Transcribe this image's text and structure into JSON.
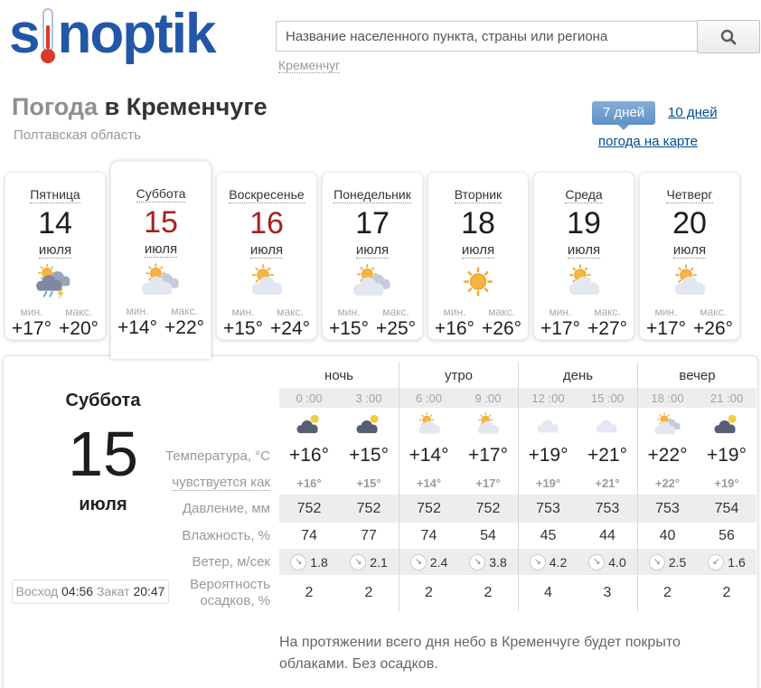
{
  "logo": {
    "left": "s",
    "right": "noptik"
  },
  "header": {
    "search_placeholder": "Название населенного пункта, страны или региона",
    "recent_city": "Кременчуг"
  },
  "title": {
    "prefix": "Погода",
    "city": "в Кременчуге",
    "region": "Полтавская область"
  },
  "tabs": {
    "seven": "7 дней",
    "ten": "10 дней",
    "map": "погода на карте"
  },
  "mm": {
    "min": "мин.",
    "max": "макс."
  },
  "days": [
    {
      "name": "Пятница",
      "date": "14",
      "month": "июля",
      "icon": "storm",
      "min": "+17°",
      "max": "+20°"
    },
    {
      "name": "Суббота",
      "date": "15",
      "month": "июля",
      "icon": "sun-clouds",
      "min": "+14°",
      "max": "+22°"
    },
    {
      "name": "Воскресенье",
      "date": "16",
      "month": "июля",
      "icon": "sun-cloud",
      "min": "+15°",
      "max": "+24°"
    },
    {
      "name": "Понедельник",
      "date": "17",
      "month": "июля",
      "icon": "sun-clouds",
      "min": "+15°",
      "max": "+25°"
    },
    {
      "name": "Вторник",
      "date": "18",
      "month": "июля",
      "icon": "sun",
      "min": "+16°",
      "max": "+26°"
    },
    {
      "name": "Среда",
      "date": "19",
      "month": "июля",
      "icon": "sun-cloud",
      "min": "+17°",
      "max": "+27°"
    },
    {
      "name": "Четверг",
      "date": "20",
      "month": "июля",
      "icon": "sun-cloud",
      "min": "+17°",
      "max": "+26°"
    }
  ],
  "detail": {
    "day_name": "Суббота",
    "date": "15",
    "month": "июля",
    "sunrise_label": "Восход",
    "sunrise": "04:56",
    "sunset_label": "Закат",
    "sunset": "20:47",
    "periods": [
      "ночь",
      "утро",
      "день",
      "вечер"
    ],
    "row_labels": {
      "temp": "Температура, °C",
      "feels": "чувствуется как",
      "pressure": "Давление, мм",
      "humidity": "Влажность, %",
      "wind": "Ветер, м/сек",
      "precip_line1": "Вероятность",
      "precip_line2": "осадков, %"
    },
    "columns": [
      {
        "time": "0 :00",
        "icon": "moon-cloud",
        "temp": "+16°",
        "feels": "+16°",
        "pressure": "752",
        "humidity": "74",
        "wind_dir": "↘",
        "wind": "1.8",
        "precip": "2"
      },
      {
        "time": "3 :00",
        "icon": "moon-cloud",
        "temp": "+15°",
        "feels": "+15°",
        "pressure": "752",
        "humidity": "77",
        "wind_dir": "↘",
        "wind": "2.1",
        "precip": "2"
      },
      {
        "time": "6 :00",
        "icon": "sun-cloud",
        "temp": "+14°",
        "feels": "+14°",
        "pressure": "752",
        "humidity": "74",
        "wind_dir": "↘",
        "wind": "2.4",
        "precip": "2"
      },
      {
        "time": "9 :00",
        "icon": "sun-cloud",
        "temp": "+17°",
        "feels": "+17°",
        "pressure": "752",
        "humidity": "54",
        "wind_dir": "↘",
        "wind": "3.8",
        "precip": "2"
      },
      {
        "time": "12 :00",
        "icon": "cloud",
        "temp": "+19°",
        "feels": "+19°",
        "pressure": "753",
        "humidity": "45",
        "wind_dir": "↘",
        "wind": "4.2",
        "precip": "4"
      },
      {
        "time": "15 :00",
        "icon": "cloud",
        "temp": "+21°",
        "feels": "+21°",
        "pressure": "753",
        "humidity": "44",
        "wind_dir": "↘",
        "wind": "4.0",
        "precip": "3"
      },
      {
        "time": "18 :00",
        "icon": "sun-clouds",
        "temp": "+22°",
        "feels": "+22°",
        "pressure": "753",
        "humidity": "40",
        "wind_dir": "↘",
        "wind": "2.5",
        "precip": "2"
      },
      {
        "time": "21 :00",
        "icon": "moon-cloud",
        "temp": "+19°",
        "feels": "+19°",
        "pressure": "754",
        "humidity": "56",
        "wind_dir": "↙",
        "wind": "1.6",
        "precip": "2"
      }
    ],
    "summary": "На протяжении всего дня небо в Кременчуге будет покрыто облаками. Без осадков."
  }
}
